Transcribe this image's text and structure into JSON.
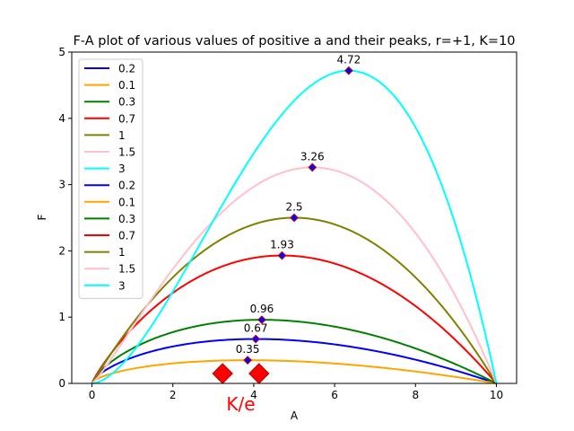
{
  "chart_data": {
    "type": "line",
    "title": "F-A plot of various values of positive a and their peaks, r=+1, K=10",
    "xlabel": "A",
    "ylabel": "F",
    "xlim": [
      -0.5,
      10.5
    ],
    "ylim": [
      0,
      5
    ],
    "xticks": [
      0,
      2,
      4,
      6,
      8,
      10
    ],
    "yticks": [
      0,
      1,
      2,
      3,
      4,
      5
    ],
    "grid": false,
    "legend_position": "upper-left",
    "K": 10,
    "r": 1,
    "series": [
      {
        "name": "0.2",
        "a": 0.2,
        "color": "#0000ff",
        "peak": {
          "x": 4.05,
          "y": 0.67,
          "label": "0.67"
        }
      },
      {
        "name": "0.1",
        "a": 0.1,
        "color": "#ffa500",
        "peak": {
          "x": 3.85,
          "y": 0.35,
          "label": "0.35"
        }
      },
      {
        "name": "0.3",
        "a": 0.3,
        "color": "#008000",
        "peak": {
          "x": 4.2,
          "y": 0.96,
          "label": "0.96"
        }
      },
      {
        "name": "0.7",
        "a": 0.7,
        "color": "#ff0000",
        "peak": {
          "x": 4.7,
          "y": 1.93,
          "label": "1.93"
        }
      },
      {
        "name": "1",
        "a": 1,
        "color": "#808000",
        "peak": {
          "x": 5.0,
          "y": 2.5,
          "label": "2.5"
        }
      },
      {
        "name": "1.5",
        "a": 1.5,
        "color": "#ffc0cb",
        "peak": {
          "x": 5.45,
          "y": 3.26,
          "label": "3.26"
        }
      },
      {
        "name": "3",
        "a": 3,
        "color": "#00ffff",
        "peak": {
          "x": 6.35,
          "y": 4.72,
          "label": "4.72"
        }
      }
    ],
    "legend_entries": [
      "0.2",
      "0.1",
      "0.3",
      "0.7",
      "1",
      "1.5",
      "3",
      "0.2",
      "0.1",
      "0.3",
      "0.7",
      "1",
      "1.5",
      "3"
    ],
    "annotation": {
      "text": "K/e",
      "x": 3.68,
      "color": "#ff0000"
    },
    "colors": {
      "marker_face": "#0000ff",
      "marker_edge": "#cc0000",
      "ke_marker": "#ff0000"
    }
  }
}
